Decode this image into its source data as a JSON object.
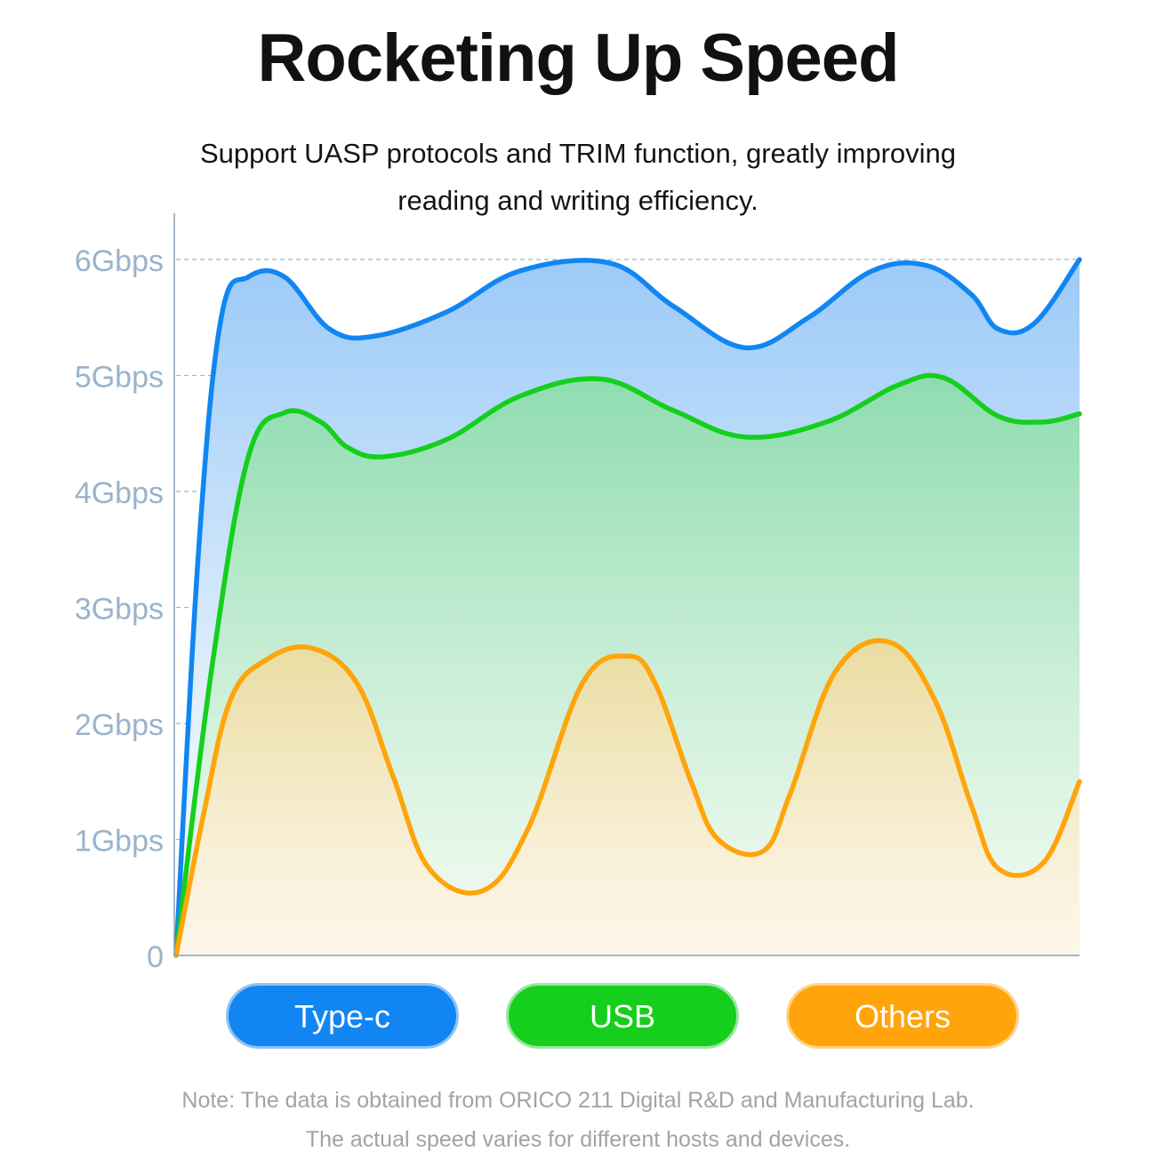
{
  "title": "Rocketing Up Speed",
  "subtitle_line1": "Support UASP protocols and TRIM function, greatly improving",
  "subtitle_line2": "reading and writing efficiency.",
  "note_line1": "Note: The data is obtained from ORICO 211 Digital R&D and Manufacturing Lab.",
  "note_line2": "The actual speed varies for different hosts and devices.",
  "colors": {
    "typec": "#1186f2",
    "usb": "#15cf1c",
    "others": "#ffa40a",
    "axis_label": "#9ab3cc",
    "grid": "#8fa4bc"
  },
  "chart_data": {
    "type": "area",
    "y_tick_labels": [
      "0",
      "1Gbps",
      "2Gbps",
      "3Gbps",
      "4Gbps",
      "5Gbps",
      "6Gbps"
    ],
    "ylim": [
      0,
      6.1
    ],
    "xlim": [
      0,
      100
    ],
    "grid": "dashed-horizontal",
    "legend_placement": "bottom",
    "series": [
      {
        "name": "Type-c",
        "color_key": "typec",
        "points": [
          [
            0,
            0
          ],
          [
            2.5,
            3.5
          ],
          [
            5,
            5.5
          ],
          [
            8,
            5.85
          ],
          [
            12,
            5.85
          ],
          [
            17,
            5.4
          ],
          [
            22,
            5.34
          ],
          [
            30,
            5.55
          ],
          [
            38,
            5.9
          ],
          [
            48,
            5.97
          ],
          [
            55,
            5.6
          ],
          [
            63,
            5.24
          ],
          [
            70,
            5.5
          ],
          [
            77,
            5.9
          ],
          [
            83,
            5.95
          ],
          [
            88,
            5.7
          ],
          [
            91,
            5.4
          ],
          [
            95,
            5.45
          ],
          [
            100,
            6.0
          ]
        ]
      },
      {
        "name": "USB",
        "color_key": "usb",
        "points": [
          [
            0,
            0
          ],
          [
            4,
            2.5
          ],
          [
            8,
            4.3
          ],
          [
            12,
            4.68
          ],
          [
            16,
            4.6
          ],
          [
            19,
            4.38
          ],
          [
            23,
            4.3
          ],
          [
            30,
            4.45
          ],
          [
            38,
            4.82
          ],
          [
            47,
            4.97
          ],
          [
            55,
            4.7
          ],
          [
            63,
            4.47
          ],
          [
            72,
            4.6
          ],
          [
            80,
            4.92
          ],
          [
            85,
            4.98
          ],
          [
            91,
            4.65
          ],
          [
            96,
            4.6
          ],
          [
            100,
            4.67
          ]
        ]
      },
      {
        "name": "Others",
        "color_key": "others",
        "points": [
          [
            0,
            0
          ],
          [
            3,
            1.2
          ],
          [
            6,
            2.2
          ],
          [
            10,
            2.55
          ],
          [
            15,
            2.65
          ],
          [
            20,
            2.35
          ],
          [
            24,
            1.55
          ],
          [
            28,
            0.75
          ],
          [
            34,
            0.56
          ],
          [
            39,
            1.1
          ],
          [
            45,
            2.35
          ],
          [
            50,
            2.58
          ],
          [
            53,
            2.35
          ],
          [
            57,
            1.5
          ],
          [
            60,
            1.0
          ],
          [
            65,
            0.9
          ],
          [
            68,
            1.4
          ],
          [
            73,
            2.45
          ],
          [
            79,
            2.7
          ],
          [
            84,
            2.2
          ],
          [
            88,
            1.3
          ],
          [
            91,
            0.75
          ],
          [
            96,
            0.8
          ],
          [
            100,
            1.5
          ]
        ]
      }
    ]
  }
}
